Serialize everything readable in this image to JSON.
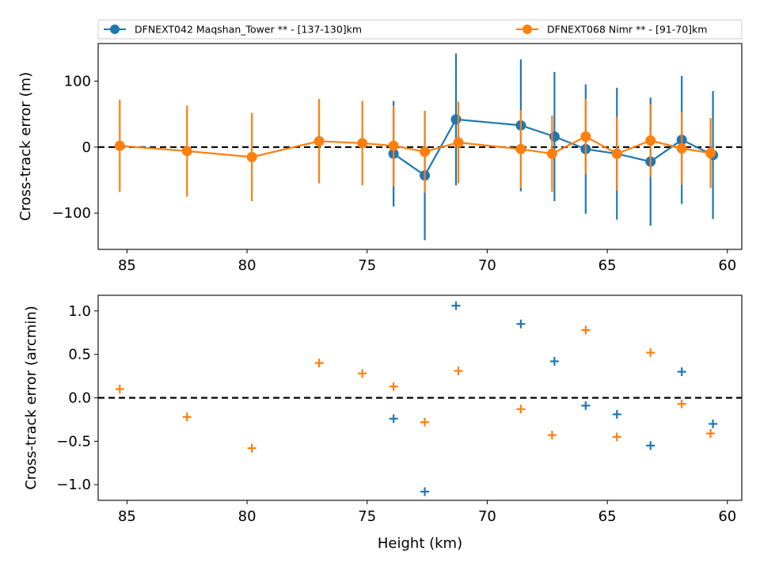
{
  "colors": {
    "series1": "#1f77b4",
    "series2": "#ff7f0e",
    "zero_line": "#000000"
  },
  "legend": [
    {
      "label": "DFNEXT042 Maqshan_Tower **  - [137-130]km",
      "color": "#1f77b4"
    },
    {
      "label": "DFNEXT068 Nimr **  - [91-70]km",
      "color": "#ff7f0e"
    }
  ],
  "chart_data": [
    {
      "type": "line",
      "title": "",
      "xlabel": "",
      "ylabel": "Cross-track error (m)",
      "xlim": [
        86.2,
        59.4
      ],
      "ylim": [
        -155,
        157
      ],
      "x_inverted": true,
      "xticks": [
        85,
        80,
        75,
        70,
        65,
        60
      ],
      "yticks": [
        -100,
        0,
        100
      ],
      "ytick_labels": [
        "−100",
        "0",
        "100"
      ],
      "zero_line": 0,
      "series": [
        {
          "name": "DFNEXT042 Maqshan_Tower **  - [137-130]km",
          "color": "#1f77b4",
          "x": [
            73.9,
            72.6,
            71.3,
            68.6,
            67.2,
            65.9,
            64.6,
            63.2,
            61.9,
            60.6
          ],
          "y": [
            -10,
            -43,
            42,
            33,
            16,
            -3,
            -10,
            -22,
            11,
            -12
          ],
          "err": [
            80,
            98,
            100,
            100,
            98,
            98,
            100,
            97,
            97,
            97
          ]
        },
        {
          "name": "DFNEXT068 Nimr **  - [91-70]km",
          "color": "#ff7f0e",
          "x": [
            85.3,
            82.5,
            79.8,
            77.0,
            75.2,
            73.9,
            72.6,
            71.2,
            68.6,
            67.3,
            65.9,
            64.6,
            63.2,
            61.9,
            60.7
          ],
          "y": [
            2,
            -6,
            -15,
            9,
            6,
            2,
            -7,
            7,
            -3,
            -10,
            16,
            -10,
            10,
            -2,
            -9
          ],
          "err": [
            70,
            69,
            67,
            64,
            64,
            61,
            62,
            62,
            59,
            58,
            57,
            56,
            55,
            55,
            53
          ]
        }
      ]
    },
    {
      "type": "scatter",
      "title": "",
      "xlabel": "Height (km)",
      "ylabel": "Cross-track error (arcmin)",
      "xlim": [
        86.2,
        59.4
      ],
      "ylim": [
        -1.18,
        1.18
      ],
      "x_inverted": true,
      "xticks": [
        85,
        80,
        75,
        70,
        65,
        60
      ],
      "yticks": [
        -1.0,
        -0.5,
        0.0,
        0.5,
        1.0
      ],
      "ytick_labels": [
        "−1.0",
        "−0.5",
        "0.0",
        "0.5",
        "1.0"
      ],
      "zero_line": 0,
      "marker": "+",
      "series": [
        {
          "name": "DFNEXT042 Maqshan_Tower **  - [137-130]km",
          "color": "#1f77b4",
          "x": [
            73.9,
            72.6,
            71.3,
            68.6,
            67.2,
            65.9,
            64.6,
            63.2,
            61.9,
            60.6
          ],
          "y": [
            -0.24,
            -1.08,
            1.06,
            0.85,
            0.42,
            -0.09,
            -0.19,
            -0.55,
            0.3,
            -0.3
          ]
        },
        {
          "name": "DFNEXT068 Nimr **  - [91-70]km",
          "color": "#ff7f0e",
          "x": [
            85.3,
            82.5,
            79.8,
            77.0,
            75.2,
            73.9,
            72.6,
            71.2,
            68.6,
            67.3,
            65.9,
            64.6,
            63.2,
            61.9,
            60.7
          ],
          "y": [
            0.1,
            -0.22,
            -0.58,
            0.4,
            0.28,
            0.13,
            -0.28,
            0.31,
            -0.13,
            -0.43,
            0.78,
            -0.45,
            0.52,
            -0.07,
            -0.41
          ]
        }
      ]
    }
  ]
}
